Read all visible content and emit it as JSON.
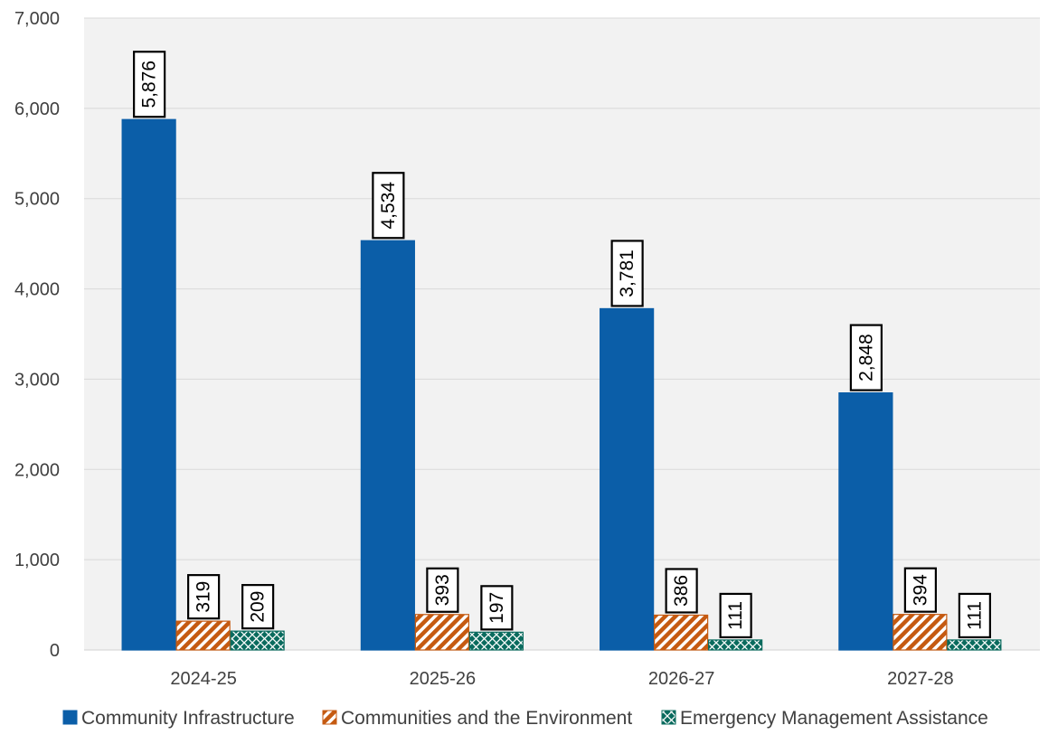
{
  "chart_data": {
    "type": "bar",
    "categories": [
      "2024-25",
      "2025-26",
      "2026-27",
      "2027-28"
    ],
    "series": [
      {
        "name": "Community Infrastructure",
        "values": [
          5876,
          4534,
          3781,
          2848
        ],
        "labels": [
          "5,876",
          "4,534",
          "3,781",
          "2,848"
        ],
        "color": "#0b5ea8",
        "pattern": "solid"
      },
      {
        "name": "Communities and the Environment",
        "values": [
          319,
          393,
          386,
          394
        ],
        "labels": [
          "319",
          "393",
          "386",
          "394"
        ],
        "color": "#c55a11",
        "pattern": "diagonal-stripes"
      },
      {
        "name": "Emergency Management Assistance",
        "values": [
          209,
          197,
          111,
          111
        ],
        "labels": [
          "209",
          "197",
          "111",
          "111"
        ],
        "color": "#0a6b5e",
        "pattern": "diamond-lattice"
      }
    ],
    "title": "",
    "xlabel": "",
    "ylabel": "",
    "ylim": [
      0,
      7000
    ],
    "yticks": [
      0,
      1000,
      2000,
      3000,
      4000,
      5000,
      6000,
      7000
    ],
    "ytick_labels": [
      "0",
      "1,000",
      "2,000",
      "3,000",
      "4,000",
      "5,000",
      "6,000",
      "7,000"
    ],
    "grid": true,
    "legend": "bottom",
    "plot_background": "#f2f2f2",
    "gridline_color": "#d9d9d9"
  }
}
